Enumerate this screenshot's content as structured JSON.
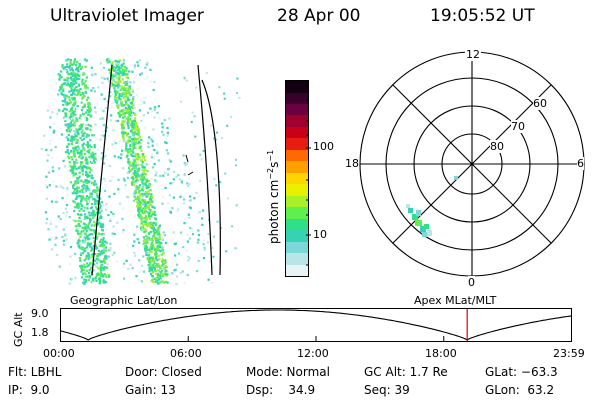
{
  "header": {
    "instrument": "Ultraviolet Imager",
    "date": "28 Apr 00",
    "time": "19:05:52 UT"
  },
  "colorbar": {
    "unit_label": "photon cm",
    "unit_sup1": "−2",
    "unit_mid": "s",
    "unit_sup2": "−1",
    "tick_100": "100",
    "tick_10": "10",
    "colors": [
      "#e8f4f4",
      "#b8e6e6",
      "#7ad8d8",
      "#36d2b4",
      "#2ee08a",
      "#5ff04e",
      "#a8f028",
      "#e8f000",
      "#ffd400",
      "#ffa000",
      "#ff6a00",
      "#e81c10",
      "#c80018",
      "#a00030",
      "#6a0040",
      "#38002a",
      "#120012"
    ]
  },
  "polar_plot": {
    "mlt_top": "12",
    "mlt_left": "18",
    "mlt_right": "6",
    "mlt_bottom": "0",
    "lat_60": "60",
    "lat_70": "70",
    "lat_80": "80"
  },
  "labels": {
    "geo_grid": "Geographic Lat/Lon",
    "apex_grid": "Apex MLat/MLT"
  },
  "altitude_plot": {
    "axis_label": "GC Alt",
    "ymax": "9.0",
    "ymin": "1.8",
    "ticks": [
      "00:00",
      "06:00",
      "12:00",
      "18:00",
      "23:59"
    ],
    "marker_time_hours": 19.1,
    "marker_color": "#e00000"
  },
  "status": {
    "filter": "Flt: LBHL",
    "door": "Door: Closed",
    "mode": "Mode: Normal",
    "gc_alt": "GC Alt: 1.7 Re",
    "glat": "GLat: −63.3",
    "ip": "IP:  9.0",
    "gain": "Gain: 13",
    "dsp": "Dsp:    34.9",
    "seq": "Seq: 39",
    "glon": "GLon:  63.2"
  }
}
